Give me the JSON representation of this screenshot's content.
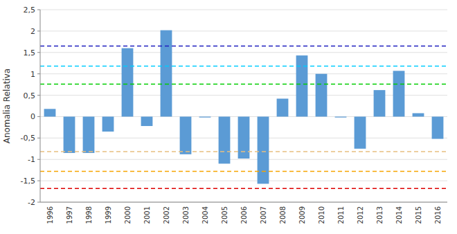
{
  "chart_data": {
    "type": "bar",
    "ylabel": "Anomalia Relativa",
    "categories": [
      "1996",
      "1997",
      "1998",
      "1999",
      "2000",
      "2001",
      "2002",
      "2003",
      "2004",
      "2005",
      "2006",
      "2007",
      "2008",
      "2009",
      "2010",
      "2011",
      "2012",
      "2013",
      "2014",
      "2015",
      "2016"
    ],
    "values": [
      0.18,
      -0.85,
      -0.85,
      -0.35,
      1.6,
      -0.22,
      2.02,
      -0.88,
      -0.02,
      -1.1,
      -0.98,
      -1.57,
      0.42,
      1.43,
      1.0,
      -0.02,
      -0.75,
      0.62,
      1.07,
      0.08,
      -0.52
    ],
    "color": "#5b9bd5",
    "hlines": [
      {
        "value": 1.65,
        "color": "#1f1fbf",
        "line_style": "dashed"
      },
      {
        "value": 1.18,
        "color": "#00ccff",
        "line_style": "dashed"
      },
      {
        "value": 0.76,
        "color": "#00cc00",
        "line_style": "dashed"
      },
      {
        "value": -0.82,
        "color": "#e8c080",
        "line_style": "dashed"
      },
      {
        "value": -1.28,
        "color": "#f5a500",
        "line_style": "dashed"
      },
      {
        "value": -1.68,
        "color": "#dd0000",
        "line_style": "dashed"
      }
    ],
    "ylim": [
      -2.0,
      2.5
    ],
    "yticks": [
      -2,
      {
        "value": -1.5,
        "label": "-1,5"
      },
      -1,
      {
        "value": -0.5,
        "label": "-0,5"
      },
      0,
      {
        "value": 0.5,
        "label": "0,5"
      },
      1,
      {
        "value": 1.5,
        "label": "1,5"
      },
      2,
      {
        "value": 2.5,
        "label": "2,5"
      }
    ],
    "grid": true
  }
}
